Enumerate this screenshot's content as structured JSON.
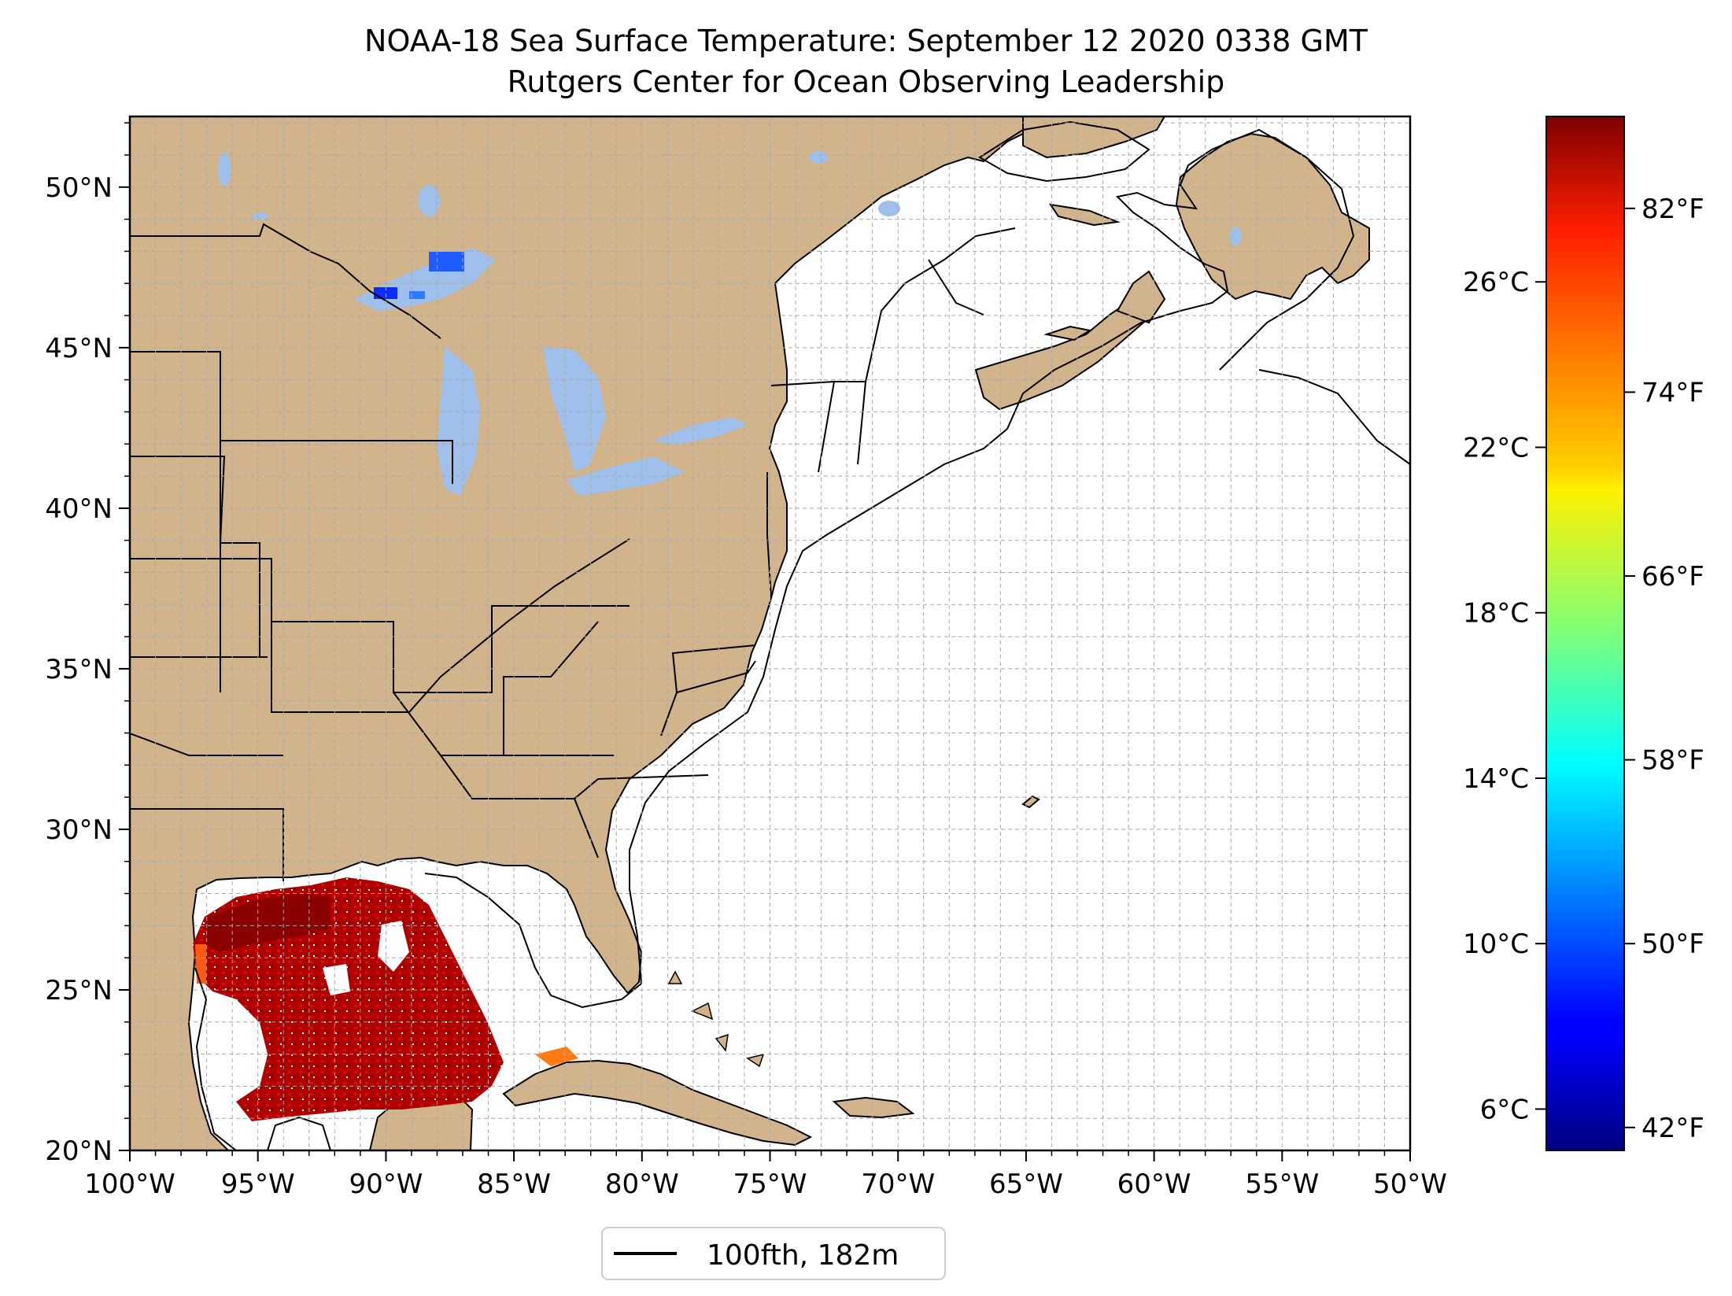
{
  "title": "NOAA-18 Sea Surface Temperature: September 12 2020 0338 GMT",
  "subtitle": "Rutgers Center for Ocean Observing Leadership",
  "map": {
    "projection": "plate-carree",
    "lon_range": [
      -100,
      -50
    ],
    "lat_range": [
      20,
      52.2
    ],
    "x_ticks": [
      {
        "value": -100,
        "label": "100°W"
      },
      {
        "value": -95,
        "label": "95°W"
      },
      {
        "value": -90,
        "label": "90°W"
      },
      {
        "value": -85,
        "label": "85°W"
      },
      {
        "value": -80,
        "label": "80°W"
      },
      {
        "value": -75,
        "label": "75°W"
      },
      {
        "value": -70,
        "label": "70°W"
      },
      {
        "value": -65,
        "label": "65°W"
      },
      {
        "value": -60,
        "label": "60°W"
      },
      {
        "value": -55,
        "label": "55°W"
      },
      {
        "value": -50,
        "label": "50°W"
      }
    ],
    "y_ticks": [
      {
        "value": 20,
        "label": "20°N"
      },
      {
        "value": 25,
        "label": "25°N"
      },
      {
        "value": 30,
        "label": "30°N"
      },
      {
        "value": 35,
        "label": "35°N"
      },
      {
        "value": 40,
        "label": "40°N"
      },
      {
        "value": 45,
        "label": "45°N"
      },
      {
        "value": 50,
        "label": "50°N"
      }
    ],
    "grid": true,
    "land_color": "#d2b48c",
    "lake_color": "#9fc0ea",
    "ocean_color": "#ffffff"
  },
  "legend": {
    "label": "100fth, 182m",
    "placement": "below-map"
  },
  "colorbar": {
    "colormap": "jet",
    "range_celsius": [
      5,
      30
    ],
    "ticks_celsius": [
      {
        "value": 6,
        "label": "6°C"
      },
      {
        "value": 10,
        "label": "10°C"
      },
      {
        "value": 14,
        "label": "14°C"
      },
      {
        "value": 18,
        "label": "18°C"
      },
      {
        "value": 22,
        "label": "22°C"
      },
      {
        "value": 26,
        "label": "26°C"
      }
    ],
    "ticks_fahrenheit": [
      {
        "value": 42,
        "label": "42°F"
      },
      {
        "value": 50,
        "label": "50°F"
      },
      {
        "value": 58,
        "label": "58°F"
      },
      {
        "value": 66,
        "label": "66°F"
      },
      {
        "value": 74,
        "label": "74°F"
      },
      {
        "value": 82,
        "label": "82°F"
      }
    ]
  }
}
